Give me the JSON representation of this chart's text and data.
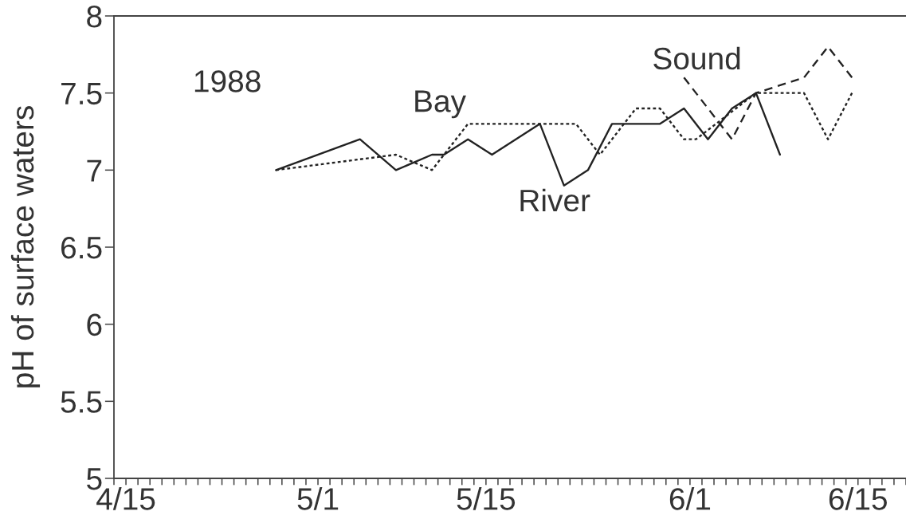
{
  "chart_data": {
    "type": "line",
    "ylabel": "pH of surface waters",
    "annotations": [
      "1988"
    ],
    "xlim": [
      "1988-04-14",
      "1988-06-19"
    ],
    "xticks": [
      {
        "value": "1988-04-14",
        "label": null
      },
      {
        "value": "1988-04-15",
        "label": "4/15"
      },
      {
        "value": "1988-04-16",
        "label": null
      },
      {
        "value": "1988-04-17",
        "label": null
      },
      {
        "value": "1988-04-18",
        "label": null
      },
      {
        "value": "1988-04-19",
        "label": null
      },
      {
        "value": "1988-04-20",
        "label": null
      },
      {
        "value": "1988-04-21",
        "label": null
      },
      {
        "value": "1988-04-22",
        "label": null
      },
      {
        "value": "1988-04-23",
        "label": null
      },
      {
        "value": "1988-04-24",
        "label": null
      },
      {
        "value": "1988-04-25",
        "label": null
      },
      {
        "value": "1988-04-26",
        "label": null
      },
      {
        "value": "1988-04-27",
        "label": null
      },
      {
        "value": "1988-04-28",
        "label": null
      },
      {
        "value": "1988-04-29",
        "label": null
      },
      {
        "value": "1988-04-30",
        "label": null
      },
      {
        "value": "1988-05-01",
        "label": "5/1"
      },
      {
        "value": "1988-05-02",
        "label": null
      },
      {
        "value": "1988-05-03",
        "label": null
      },
      {
        "value": "1988-05-04",
        "label": null
      },
      {
        "value": "1988-05-05",
        "label": null
      },
      {
        "value": "1988-05-06",
        "label": null
      },
      {
        "value": "1988-05-07",
        "label": null
      },
      {
        "value": "1988-05-08",
        "label": null
      },
      {
        "value": "1988-05-09",
        "label": null
      },
      {
        "value": "1988-05-10",
        "label": null
      },
      {
        "value": "1988-05-11",
        "label": null
      },
      {
        "value": "1988-05-12",
        "label": null
      },
      {
        "value": "1988-05-13",
        "label": null
      },
      {
        "value": "1988-05-14",
        "label": null
      },
      {
        "value": "1988-05-15",
        "label": "5/15"
      },
      {
        "value": "1988-05-16",
        "label": null
      },
      {
        "value": "1988-05-17",
        "label": null
      },
      {
        "value": "1988-05-18",
        "label": null
      },
      {
        "value": "1988-05-19",
        "label": null
      },
      {
        "value": "1988-05-20",
        "label": null
      },
      {
        "value": "1988-05-21",
        "label": null
      },
      {
        "value": "1988-05-22",
        "label": null
      },
      {
        "value": "1988-05-23",
        "label": null
      },
      {
        "value": "1988-05-24",
        "label": null
      },
      {
        "value": "1988-05-25",
        "label": null
      },
      {
        "value": "1988-05-26",
        "label": null
      },
      {
        "value": "1988-05-27",
        "label": null
      },
      {
        "value": "1988-05-28",
        "label": null
      },
      {
        "value": "1988-05-29",
        "label": null
      },
      {
        "value": "1988-05-30",
        "label": null
      },
      {
        "value": "1988-05-31",
        "label": null
      },
      {
        "value": "1988-06-01",
        "label": "6/1"
      },
      {
        "value": "1988-06-02",
        "label": null
      },
      {
        "value": "1988-06-03",
        "label": null
      },
      {
        "value": "1988-06-04",
        "label": null
      },
      {
        "value": "1988-06-05",
        "label": null
      },
      {
        "value": "1988-06-06",
        "label": null
      },
      {
        "value": "1988-06-07",
        "label": null
      },
      {
        "value": "1988-06-08",
        "label": null
      },
      {
        "value": "1988-06-09",
        "label": null
      },
      {
        "value": "1988-06-10",
        "label": null
      },
      {
        "value": "1988-06-11",
        "label": null
      },
      {
        "value": "1988-06-12",
        "label": null
      },
      {
        "value": "1988-06-13",
        "label": null
      },
      {
        "value": "1988-06-14",
        "label": null
      },
      {
        "value": "1988-06-15",
        "label": "6/15"
      },
      {
        "value": "1988-06-16",
        "label": null
      },
      {
        "value": "1988-06-17",
        "label": null
      },
      {
        "value": "1988-06-18",
        "label": null
      },
      {
        "value": "1988-06-19",
        "label": null
      }
    ],
    "ylim": [
      5,
      8
    ],
    "yticks": [
      5,
      5.5,
      6,
      6.5,
      7,
      7.5,
      8
    ],
    "grid": false,
    "series": [
      {
        "name": "River",
        "color": "#222222",
        "line_style": "solid",
        "x": [
          "1988-04-27T12:00",
          "1988-05-04T12:00",
          "1988-05-07T12:00",
          "1988-05-10T12:00",
          "1988-05-11T12:00",
          "1988-05-13T12:00",
          "1988-05-15T12:00",
          "1988-05-19T12:00",
          "1988-05-21T12:00",
          "1988-05-23T12:00",
          "1988-05-25T12:00",
          "1988-05-29T12:00",
          "1988-05-31T12:00",
          "1988-06-02T12:00",
          "1988-06-04T12:00",
          "1988-06-06T12:00",
          "1988-06-08T12:00"
        ],
        "values": [
          7.0,
          7.2,
          7.0,
          7.1,
          7.1,
          7.2,
          7.1,
          7.3,
          6.9,
          7.0,
          7.3,
          7.3,
          7.4,
          7.2,
          7.4,
          7.5,
          7.1
        ]
      },
      {
        "name": "Bay",
        "color": "#222222",
        "line_style": "dotted",
        "x": [
          "1988-04-27T12:00",
          "1988-05-07T12:00",
          "1988-05-10T12:00",
          "1988-05-13T12:00",
          "1988-05-22T12:00",
          "1988-05-24T12:00",
          "1988-05-27T12:00",
          "1988-05-29T12:00",
          "1988-05-31T12:00",
          "1988-06-01T12:00",
          "1988-06-06T12:00",
          "1988-06-10T12:00",
          "1988-06-12T12:00",
          "1988-06-14T12:00"
        ],
        "values": [
          7.0,
          7.1,
          7.0,
          7.3,
          7.3,
          7.1,
          7.4,
          7.4,
          7.2,
          7.2,
          7.5,
          7.5,
          7.2,
          7.5
        ]
      },
      {
        "name": "Sound",
        "color": "#222222",
        "line_style": "dashed",
        "x": [
          "1988-05-31T12:00",
          "1988-06-04T12:00",
          "1988-06-06T12:00",
          "1988-06-10T12:00",
          "1988-06-12T12:00",
          "1988-06-14T12:00"
        ],
        "values": [
          7.6,
          7.2,
          7.5,
          7.6,
          7.8,
          7.6
        ]
      }
    ]
  }
}
